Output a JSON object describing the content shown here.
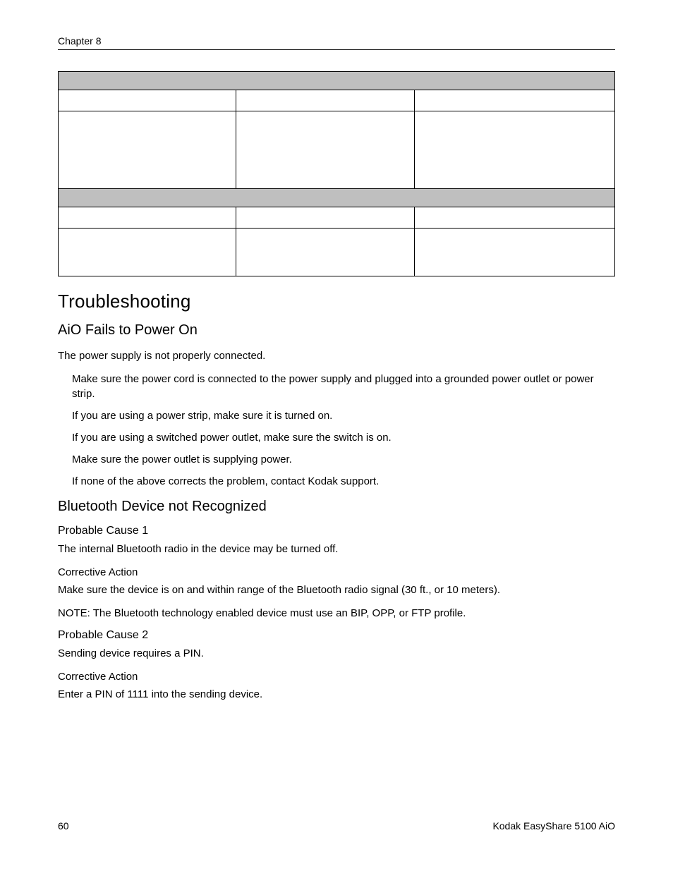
{
  "header": {
    "chapter": "Chapter 8"
  },
  "table": {
    "band_bg": "#bfbfbf",
    "border_color": "#000000"
  },
  "troubleshooting": {
    "title": "Troubleshooting",
    "power": {
      "title": "AiO Fails to Power On",
      "intro": "The power supply is not properly connected.",
      "steps": [
        "Make sure the power cord is connected to the power supply and plugged into a grounded power outlet or power strip.",
        "If you are using a power strip, make sure it is turned on.",
        "If you are using a switched power outlet, make sure the switch is on.",
        "Make sure the power outlet is supplying power.",
        "If none of the above corrects the problem, contact Kodak support."
      ]
    },
    "bluetooth": {
      "title": "Bluetooth Device not Recognized",
      "cause1": {
        "heading": "Probable Cause 1",
        "text": "The internal Bluetooth radio in the device may be turned off.",
        "action_heading": "Corrective Action",
        "action_text": "Make sure the device is on and within range of the Bluetooth radio signal (30 ft., or 10 meters).",
        "note": "NOTE:  The Bluetooth technology enabled device must use an BIP, OPP, or FTP profile."
      },
      "cause2": {
        "heading": "Probable Cause 2",
        "text": "Sending device requires a  PIN.",
        "action_heading": "Corrective Action",
        "action_text": "Enter a PIN of 1111 into the sending device."
      }
    }
  },
  "footer": {
    "page": "60",
    "doc": "Kodak EasyShare 5100 AiO"
  }
}
